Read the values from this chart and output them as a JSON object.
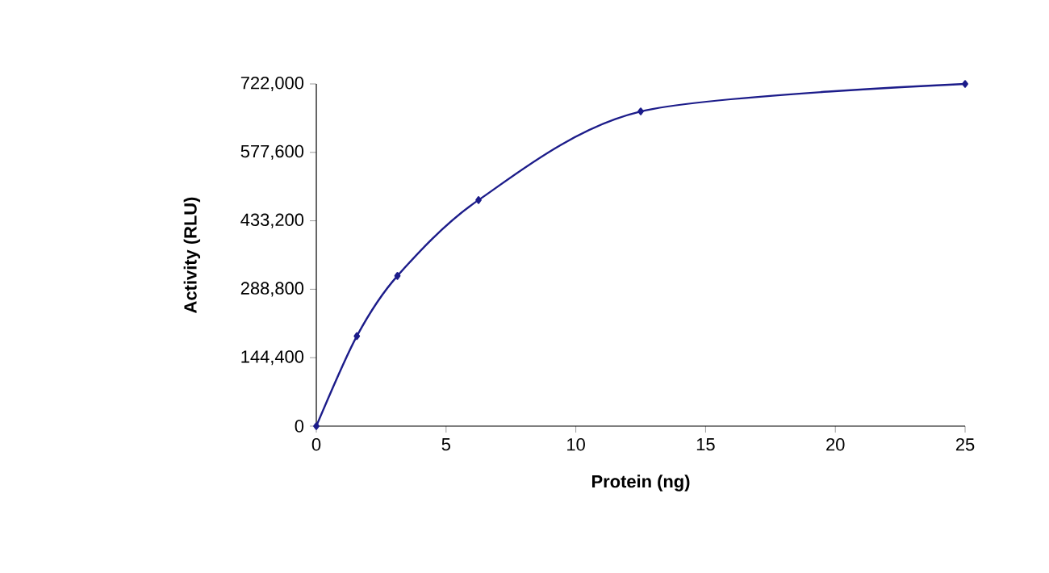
{
  "chart_data": {
    "type": "line",
    "xlabel": "Protein (ng)",
    "ylabel": "Activity (RLU)",
    "series": [
      {
        "color": "#1c1c8a",
        "x": [
          0,
          1.5625,
          3.125,
          6.25,
          12.5,
          25
        ],
        "values": [
          0,
          190000,
          317000,
          477000,
          664000,
          722000
        ]
      }
    ],
    "xlim": [
      0,
      25
    ],
    "ylim": [
      0,
      722000
    ],
    "xticks": [
      0,
      5,
      10,
      15,
      20,
      25
    ],
    "yticks": [
      {
        "value": 0,
        "label": "0"
      },
      {
        "value": 144400,
        "label": "144,400"
      },
      {
        "value": 288800,
        "label": "288,800"
      },
      {
        "value": 433200,
        "label": "433,200"
      },
      {
        "value": 577600,
        "label": "577,600"
      },
      {
        "value": 722000,
        "label": "722,000"
      }
    ],
    "grid": false,
    "marker": "diamond",
    "line_style": "solid"
  }
}
